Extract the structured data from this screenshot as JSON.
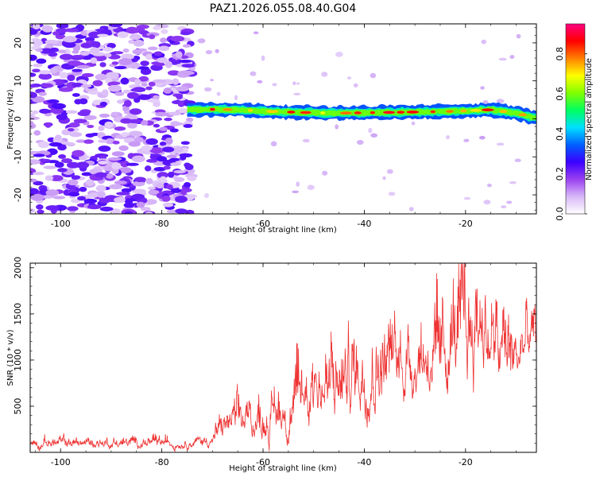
{
  "title": "PAZ1.2026.055.08.40.G04",
  "chart_data": [
    {
      "type": "heatmap",
      "name": "spectrogram",
      "xlabel": "Height of straight line (km)",
      "ylabel": "Frequency (Hz)",
      "xlim": [
        -106,
        -6
      ],
      "ylim": [
        -25,
        25
      ],
      "x_ticks": [
        -100,
        -80,
        -60,
        -40,
        -20
      ],
      "y_ticks": [
        -20,
        -10,
        0,
        10,
        20
      ],
      "x_tick_labels": [
        "-100",
        "-80",
        "-60",
        "-40",
        "-20"
      ],
      "y_tick_labels": [
        "-20",
        "-10",
        "0",
        "10",
        "20"
      ],
      "noise_region_km": [
        -106,
        -74
      ],
      "signal_start_km": -75,
      "signal_line": {
        "x": [
          -75,
          -70,
          -65,
          -60,
          -55,
          -50,
          -45,
          -40,
          -35,
          -30,
          -25,
          -20,
          -15,
          -10,
          -6
        ],
        "freq": [
          2.4,
          2.5,
          2.4,
          2.0,
          1.8,
          1.6,
          1.5,
          1.6,
          1.7,
          1.8,
          1.9,
          2.1,
          2.4,
          1.5,
          0.2
        ]
      },
      "colorbar": {
        "label": "Normalized spectral amplitude",
        "range": [
          0,
          0.95
        ],
        "ticks": [
          0.0,
          0.2,
          0.4,
          0.6,
          0.8
        ],
        "tick_labels": [
          "0.0",
          "0.2",
          "0.4",
          "0.6",
          "0.8"
        ],
        "colors": [
          "#ffffff",
          "#d8b8f8",
          "#9a40f0",
          "#3a00ff",
          "#0060ff",
          "#00e0ff",
          "#00ff60",
          "#80ff00",
          "#ffff00",
          "#ff8000",
          "#ff0000",
          "#ff0080"
        ]
      }
    },
    {
      "type": "line",
      "name": "snr",
      "xlabel": "Height of straight line (km)",
      "ylabel": "SNR (10 * v/v)",
      "xlim": [
        -106,
        -6
      ],
      "ylim": [
        0,
        2050
      ],
      "x_ticks": [
        -100,
        -80,
        -60,
        -40,
        -20
      ],
      "y_ticks": [
        500,
        1000,
        1500,
        2000
      ],
      "x_tick_labels": [
        "-100",
        "-80",
        "-60",
        "-40",
        "-20"
      ],
      "y_tick_labels": [
        "500",
        "1000",
        "1500",
        "2000"
      ],
      "color": "#ee3333",
      "envelope": {
        "x": [
          -106,
          -95,
          -85,
          -75,
          -70,
          -68,
          -66,
          -64,
          -60,
          -56,
          -53,
          -51,
          -50,
          -48,
          -45,
          -42,
          -40,
          -36,
          -32,
          -28,
          -25,
          -22,
          -20,
          -18,
          -17,
          -16,
          -14,
          -12,
          -10,
          -8,
          -6
        ],
        "base": [
          60,
          60,
          60,
          60,
          80,
          150,
          220,
          180,
          200,
          250,
          300,
          400,
          450,
          380,
          420,
          500,
          550,
          620,
          680,
          720,
          650,
          850,
          800,
          900,
          1000,
          950,
          750,
          800,
          700,
          1000,
          1050
        ],
        "amp": [
          90,
          90,
          90,
          90,
          110,
          260,
          250,
          330,
          350,
          420,
          550,
          750,
          900,
          650,
          650,
          750,
          800,
          750,
          700,
          720,
          650,
          900,
          1000,
          1000,
          1050,
          800,
          700,
          650,
          600,
          500,
          400
        ]
      }
    }
  ]
}
